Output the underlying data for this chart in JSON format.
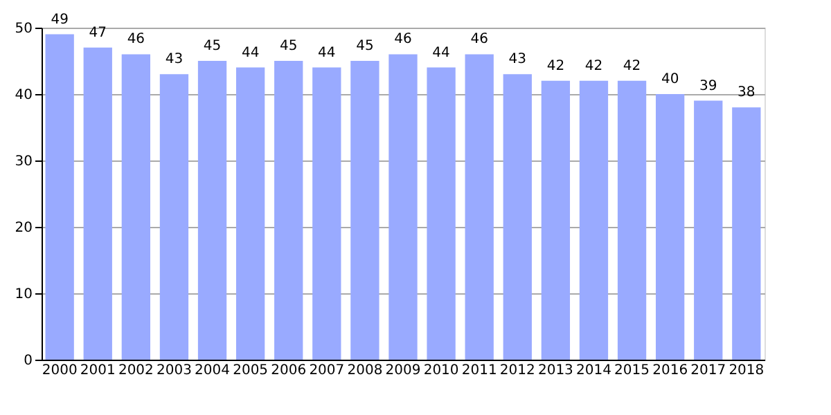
{
  "chart_data": {
    "type": "bar",
    "categories": [
      "2000",
      "2001",
      "2002",
      "2003",
      "2004",
      "2005",
      "2006",
      "2007",
      "2008",
      "2009",
      "2010",
      "2011",
      "2012",
      "2013",
      "2014",
      "2015",
      "2016",
      "2017",
      "2018"
    ],
    "values": [
      49,
      47,
      46,
      43,
      45,
      44,
      45,
      44,
      45,
      46,
      44,
      46,
      43,
      42,
      42,
      42,
      40,
      39,
      38
    ],
    "color": "#99aaff",
    "ylim": [
      0,
      50
    ],
    "yticks": [
      0,
      10,
      20,
      30,
      40,
      50
    ],
    "grid": "y",
    "data_labels": true
  }
}
